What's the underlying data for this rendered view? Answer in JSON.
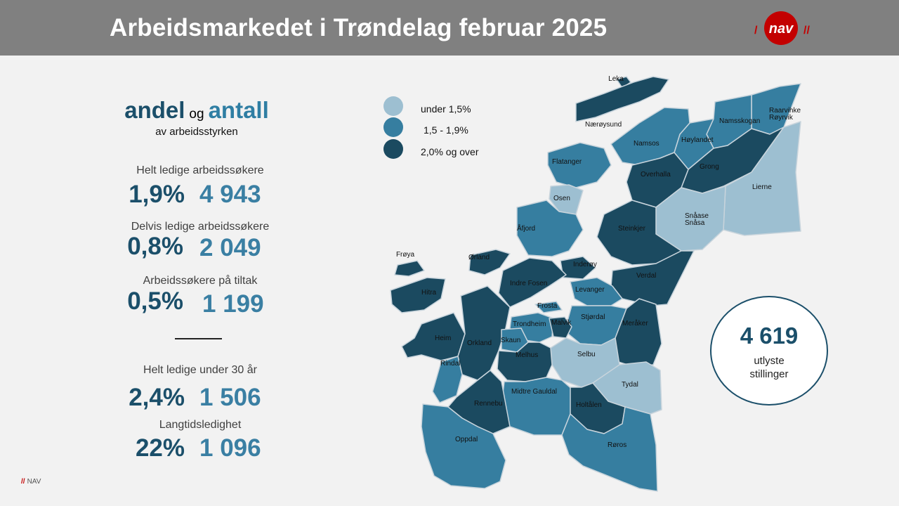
{
  "title": "Arbeidsmarkedet i Trøndelag februar 2025",
  "logo_text": "nav",
  "colors": {
    "low": "#9dbfd1",
    "mid": "#367ea0",
    "high": "#1b4a60",
    "brand_red": "#c30000"
  },
  "heading": {
    "andel": "andel",
    "og": "og",
    "antall": "antall",
    "sub": "av arbeidsstyrken"
  },
  "stats": [
    {
      "label": "Helt ledige arbeidssøkere",
      "pct": "1,9%",
      "count": "4 943"
    },
    {
      "label": "Delvis ledige arbeidssøkere",
      "pct": "0,8%",
      "count": "2 049"
    },
    {
      "label": "Arbeidssøkere på tiltak",
      "pct": "0,5%",
      "count": "1 199"
    },
    {
      "label": "Helt ledige under 30 år",
      "pct": "2,4%",
      "count": "1 506"
    },
    {
      "label": "Langtidsledighet",
      "pct": "22%",
      "count": "1 096"
    }
  ],
  "legend": [
    {
      "label": "under 1,5%",
      "level": "low"
    },
    {
      "label": "1,5 - 1,9%",
      "level": "mid"
    },
    {
      "label": "2,0% og over",
      "level": "high"
    }
  ],
  "vacancies": {
    "count": "4 619",
    "line1": "utlyste",
    "line2": "stillinger"
  },
  "footer": {
    "slashes": "//",
    "text": "NAV"
  },
  "municipalities": [
    {
      "name": "Leka",
      "level": "high"
    },
    {
      "name": "Nærøysund",
      "level": "high"
    },
    {
      "name": "Raarvihke Røyrvik",
      "level": "mid"
    },
    {
      "name": "Namsskogan",
      "level": "mid"
    },
    {
      "name": "Høylandet",
      "level": "mid"
    },
    {
      "name": "Namsos",
      "level": "mid"
    },
    {
      "name": "Grong",
      "level": "high"
    },
    {
      "name": "Overhalla",
      "level": "high"
    },
    {
      "name": "Flatanger",
      "level": "mid"
    },
    {
      "name": "Lierne",
      "level": "low"
    },
    {
      "name": "Osen",
      "level": "low"
    },
    {
      "name": "Snåase Snåsa",
      "level": "low"
    },
    {
      "name": "Åfjord",
      "level": "mid"
    },
    {
      "name": "Steinkjer",
      "level": "high"
    },
    {
      "name": "Frøya",
      "level": "high"
    },
    {
      "name": "Ørland",
      "level": "high"
    },
    {
      "name": "Inderøy",
      "level": "high"
    },
    {
      "name": "Verdal",
      "level": "high"
    },
    {
      "name": "Indre Fosen",
      "level": "high"
    },
    {
      "name": "Levanger",
      "level": "mid"
    },
    {
      "name": "Hitra",
      "level": "high"
    },
    {
      "name": "Frosta",
      "level": "mid"
    },
    {
      "name": "Stjørdal",
      "level": "mid"
    },
    {
      "name": "Trondheim",
      "level": "mid"
    },
    {
      "name": "Malvik",
      "level": "high"
    },
    {
      "name": "Meråker",
      "level": "high"
    },
    {
      "name": "Heim",
      "level": "high"
    },
    {
      "name": "Orkland",
      "level": "high"
    },
    {
      "name": "Skaun",
      "level": "mid"
    },
    {
      "name": "Selbu",
      "level": "low"
    },
    {
      "name": "Melhus",
      "level": "high"
    },
    {
      "name": "Rindal",
      "level": "mid"
    },
    {
      "name": "Tydal",
      "level": "low"
    },
    {
      "name": "Midtre Gauldal",
      "level": "mid"
    },
    {
      "name": "Rennebu",
      "level": "high"
    },
    {
      "name": "Holtålen",
      "level": "high"
    },
    {
      "name": "Oppdal",
      "level": "mid"
    },
    {
      "name": "Røros",
      "level": "mid"
    }
  ]
}
